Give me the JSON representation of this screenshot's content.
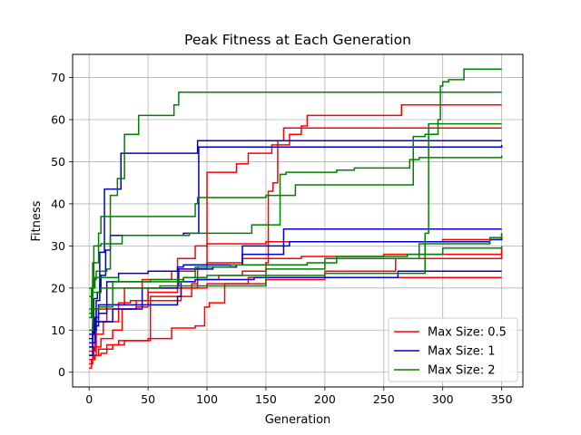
{
  "chart_data": {
    "type": "line",
    "title": "Peak Fitness at Each Generation",
    "xlabel": "Generation",
    "ylabel": "Fitness",
    "xlim": [
      -14,
      368
    ],
    "ylim": [
      -3.5,
      75.5
    ],
    "xticks": [
      0,
      50,
      100,
      150,
      200,
      250,
      300,
      350
    ],
    "yticks": [
      0,
      10,
      20,
      30,
      40,
      50,
      60,
      70
    ],
    "grid": true,
    "legend_position": "bottom-right",
    "legend": [
      {
        "label": "Max Size: 0.5",
        "color": "#ff0000"
      },
      {
        "label": "Max Size: 1",
        "color": "#0000cc"
      },
      {
        "label": "Max Size: 2",
        "color": "#008000"
      }
    ],
    "series": [
      {
        "group": "Max Size: 0.5",
        "color": "#ff0000",
        "points": [
          [
            0,
            1
          ],
          [
            2,
            3
          ],
          [
            5,
            4
          ],
          [
            10,
            4.5
          ],
          [
            15,
            5.5
          ],
          [
            20,
            6.5
          ],
          [
            30,
            7.5
          ],
          [
            50,
            8
          ],
          [
            70,
            10.5
          ],
          [
            90,
            11
          ],
          [
            98,
            15.5
          ],
          [
            102,
            16.5
          ],
          [
            115,
            21
          ],
          [
            135,
            22.5
          ],
          [
            260,
            22.5
          ],
          [
            350,
            22.5
          ]
        ]
      },
      {
        "group": "Max Size: 0.5",
        "color": "#ff0000",
        "points": [
          [
            0,
            2
          ],
          [
            3,
            4
          ],
          [
            8,
            5.5
          ],
          [
            15,
            6.5
          ],
          [
            25,
            7.5
          ],
          [
            40,
            7.5
          ],
          [
            52,
            18
          ],
          [
            75,
            18
          ],
          [
            87,
            21
          ],
          [
            92,
            25
          ],
          [
            100,
            26
          ],
          [
            130,
            27
          ],
          [
            180,
            27.5
          ],
          [
            250,
            28
          ],
          [
            350,
            29.5
          ]
        ]
      },
      {
        "group": "Max Size: 0.5",
        "color": "#ff0000",
        "points": [
          [
            0,
            3
          ],
          [
            4,
            6
          ],
          [
            10,
            8
          ],
          [
            20,
            10
          ],
          [
            28,
            15
          ],
          [
            40,
            15.5
          ],
          [
            50,
            20
          ],
          [
            100,
            21
          ],
          [
            150,
            22
          ],
          [
            200,
            24
          ],
          [
            260,
            27
          ],
          [
            350,
            29.5
          ]
        ]
      },
      {
        "group": "Max Size: 0.5",
        "color": "#ff0000",
        "points": [
          [
            0,
            5
          ],
          [
            5,
            9
          ],
          [
            12,
            12
          ],
          [
            25,
            16.5
          ],
          [
            35,
            17
          ],
          [
            50,
            19
          ],
          [
            75,
            27
          ],
          [
            90,
            30
          ],
          [
            100,
            30.5
          ],
          [
            150,
            31
          ],
          [
            200,
            31
          ],
          [
            260,
            31
          ],
          [
            300,
            31.5
          ],
          [
            350,
            32
          ]
        ]
      },
      {
        "group": "Max Size: 0.5",
        "color": "#ff0000",
        "points": [
          [
            0,
            4
          ],
          [
            6,
            15
          ],
          [
            15,
            16
          ],
          [
            30,
            20
          ],
          [
            45,
            22
          ],
          [
            70,
            24
          ],
          [
            90,
            24.5
          ],
          [
            100,
            47.5
          ],
          [
            125,
            49.5
          ],
          [
            135,
            52
          ],
          [
            150,
            52
          ],
          [
            155,
            54
          ],
          [
            170,
            56.5
          ],
          [
            180,
            58.5
          ],
          [
            185,
            61
          ],
          [
            260,
            61
          ],
          [
            265,
            63.5
          ],
          [
            350,
            63.5
          ]
        ]
      },
      {
        "group": "Max Size: 0.5",
        "color": "#ff0000",
        "points": [
          [
            0,
            6
          ],
          [
            5,
            12
          ],
          [
            15,
            15
          ],
          [
            40,
            17
          ],
          [
            78,
            20
          ],
          [
            92,
            22
          ],
          [
            100,
            22
          ],
          [
            110,
            23
          ],
          [
            130,
            24
          ],
          [
            150,
            26
          ],
          [
            152,
            43
          ],
          [
            156,
            45
          ],
          [
            160,
            55
          ],
          [
            165,
            58
          ],
          [
            350,
            58
          ]
        ]
      },
      {
        "group": "Max Size: 1",
        "color": "#0000cc",
        "points": [
          [
            0,
            8
          ],
          [
            3,
            11
          ],
          [
            8,
            14
          ],
          [
            15,
            16
          ],
          [
            30,
            16
          ],
          [
            60,
            16
          ],
          [
            75,
            18
          ],
          [
            78,
            21.5
          ],
          [
            90,
            22
          ],
          [
            100,
            22
          ],
          [
            140,
            22.5
          ],
          [
            200,
            22.5
          ],
          [
            260,
            22.5
          ],
          [
            262,
            24
          ],
          [
            350,
            24
          ]
        ]
      },
      {
        "group": "Max Size: 1",
        "color": "#0000cc",
        "points": [
          [
            0,
            7
          ],
          [
            5,
            13
          ],
          [
            8,
            16
          ],
          [
            15,
            21.5
          ],
          [
            25,
            23.5
          ],
          [
            50,
            24
          ],
          [
            75,
            25
          ],
          [
            80,
            25.5
          ],
          [
            125,
            25.5
          ],
          [
            130,
            30
          ],
          [
            160,
            30
          ],
          [
            170,
            31
          ],
          [
            280,
            31
          ],
          [
            340,
            31.5
          ],
          [
            350,
            33
          ]
        ]
      },
      {
        "group": "Max Size: 1",
        "color": "#0000cc",
        "points": [
          [
            0,
            4
          ],
          [
            3,
            10
          ],
          [
            6,
            17
          ],
          [
            9,
            28.5
          ],
          [
            13,
            43.5
          ],
          [
            25,
            43.5
          ],
          [
            27,
            52
          ],
          [
            90,
            52
          ],
          [
            92,
            55
          ],
          [
            350,
            55
          ]
        ]
      },
      {
        "group": "Max Size: 1",
        "color": "#0000cc",
        "points": [
          [
            0,
            9
          ],
          [
            4,
            17.5
          ],
          [
            7,
            19
          ],
          [
            10,
            23
          ],
          [
            14,
            29
          ],
          [
            18,
            32.5
          ],
          [
            26,
            32.5
          ],
          [
            75,
            32.5
          ],
          [
            80,
            33
          ],
          [
            92,
            33
          ],
          [
            93,
            53.5
          ],
          [
            350,
            54
          ]
        ]
      },
      {
        "group": "Max Size: 1",
        "color": "#0000cc",
        "points": [
          [
            0,
            6
          ],
          [
            3,
            12
          ],
          [
            10,
            12
          ],
          [
            20,
            15
          ],
          [
            45,
            20
          ],
          [
            75,
            20.5
          ],
          [
            76,
            24.5
          ],
          [
            105,
            25
          ],
          [
            125,
            25.5
          ],
          [
            130,
            28
          ],
          [
            165,
            34
          ],
          [
            350,
            34
          ]
        ]
      },
      {
        "group": "Max Size: 2",
        "color": "#008000",
        "points": [
          [
            0,
            13
          ],
          [
            2,
            20
          ],
          [
            4,
            30
          ],
          [
            10,
            30.5
          ],
          [
            25,
            30.5
          ],
          [
            28,
            32.5
          ],
          [
            80,
            32.5
          ],
          [
            85,
            33
          ],
          [
            125,
            33
          ],
          [
            138,
            35
          ],
          [
            160,
            35
          ],
          [
            162,
            47
          ],
          [
            167,
            47.5
          ],
          [
            210,
            48
          ],
          [
            225,
            48.5
          ],
          [
            268,
            48.5
          ],
          [
            272,
            50.5
          ],
          [
            280,
            51
          ],
          [
            330,
            51
          ],
          [
            350,
            51.5
          ]
        ]
      },
      {
        "group": "Max Size: 2",
        "color": "#008000",
        "points": [
          [
            0,
            14
          ],
          [
            3,
            22
          ],
          [
            6,
            24
          ],
          [
            15,
            24.5
          ],
          [
            18,
            42
          ],
          [
            24,
            46
          ],
          [
            28,
            46
          ],
          [
            30,
            56.5
          ],
          [
            40,
            56.5
          ],
          [
            42,
            61
          ],
          [
            70,
            61
          ],
          [
            72,
            63.5
          ],
          [
            76,
            66.5
          ],
          [
            350,
            66.5
          ]
        ]
      },
      {
        "group": "Max Size: 2",
        "color": "#008000",
        "points": [
          [
            0,
            18
          ],
          [
            3,
            26
          ],
          [
            8,
            33
          ],
          [
            10,
            37
          ],
          [
            88,
            37
          ],
          [
            90,
            40
          ],
          [
            92,
            41.5
          ],
          [
            130,
            41.5
          ],
          [
            150,
            42
          ],
          [
            160,
            42
          ],
          [
            175,
            44.5
          ],
          [
            270,
            44.5
          ],
          [
            275,
            56
          ],
          [
            285,
            56.5
          ],
          [
            292,
            56.5
          ],
          [
            296,
            60
          ],
          [
            298,
            68
          ],
          [
            300,
            69
          ],
          [
            305,
            69.5
          ],
          [
            315,
            69.5
          ],
          [
            318,
            72
          ],
          [
            350,
            72
          ]
        ]
      },
      {
        "group": "Max Size: 2",
        "color": "#008000",
        "points": [
          [
            0,
            20
          ],
          [
            3,
            20
          ],
          [
            5,
            22.5
          ],
          [
            25,
            21.5
          ],
          [
            80,
            22.5
          ],
          [
            90,
            25
          ],
          [
            110,
            25
          ],
          [
            120,
            25.5
          ],
          [
            160,
            25.5
          ],
          [
            185,
            26
          ],
          [
            210,
            27.5
          ],
          [
            270,
            28
          ],
          [
            300,
            29.5
          ],
          [
            350,
            30
          ]
        ]
      },
      {
        "group": "Max Size: 2",
        "color": "#008000",
        "points": [
          [
            0,
            15
          ],
          [
            4,
            15
          ],
          [
            8,
            15.5
          ],
          [
            20,
            21.5
          ],
          [
            40,
            21.5
          ],
          [
            52,
            22
          ],
          [
            80,
            22.5
          ],
          [
            100,
            23
          ],
          [
            150,
            23
          ],
          [
            200,
            23.5
          ],
          [
            285,
            33
          ],
          [
            288,
            59
          ],
          [
            300,
            59
          ],
          [
            350,
            59
          ]
        ]
      },
      {
        "group": "Max Size: 2",
        "color": "#008000",
        "points": [
          [
            0,
            10
          ],
          [
            3,
            19
          ],
          [
            10,
            20
          ],
          [
            50,
            20
          ],
          [
            60,
            20.5
          ],
          [
            100,
            20.5
          ],
          [
            130,
            20.5
          ],
          [
            150,
            24.5
          ],
          [
            200,
            27
          ],
          [
            260,
            27
          ],
          [
            280,
            30.5
          ],
          [
            340,
            32
          ],
          [
            350,
            33
          ]
        ]
      }
    ]
  }
}
